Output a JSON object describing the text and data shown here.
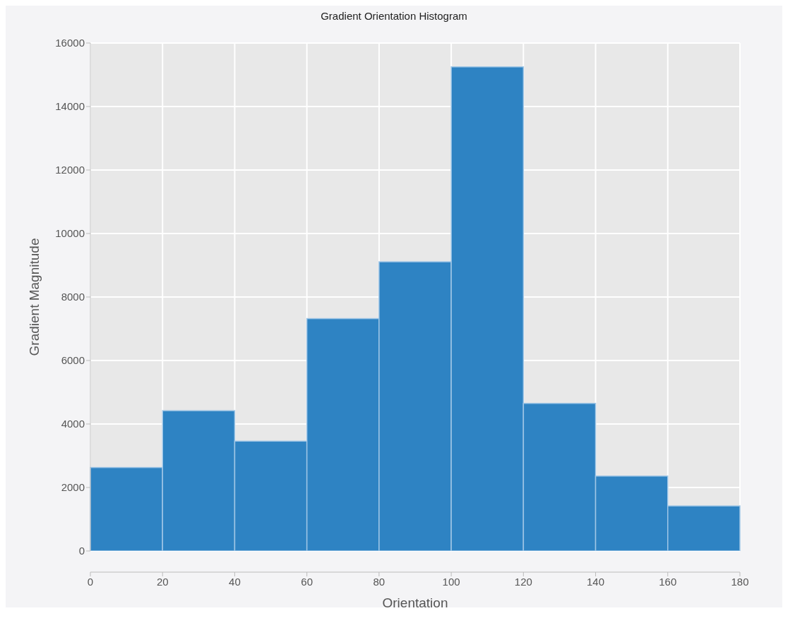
{
  "chart_data": {
    "type": "histogram",
    "title": "Gradient Orientation Histogram",
    "xlabel": "Orientation",
    "ylabel": "Gradient Magnitude",
    "bins": [
      0,
      20,
      40,
      60,
      80,
      100,
      120,
      140,
      160,
      180
    ],
    "values": [
      2630,
      4420,
      3460,
      7320,
      9110,
      15250,
      4650,
      2360,
      1420
    ],
    "color": "#2e83c3",
    "xlim": [
      0,
      180
    ],
    "xticks": [
      0,
      20,
      40,
      60,
      80,
      100,
      120,
      140,
      160,
      180
    ],
    "ylim": [
      0,
      16000
    ],
    "yticks": [
      0,
      2000,
      4000,
      6000,
      8000,
      10000,
      12000,
      14000,
      16000
    ],
    "grid": true
  }
}
